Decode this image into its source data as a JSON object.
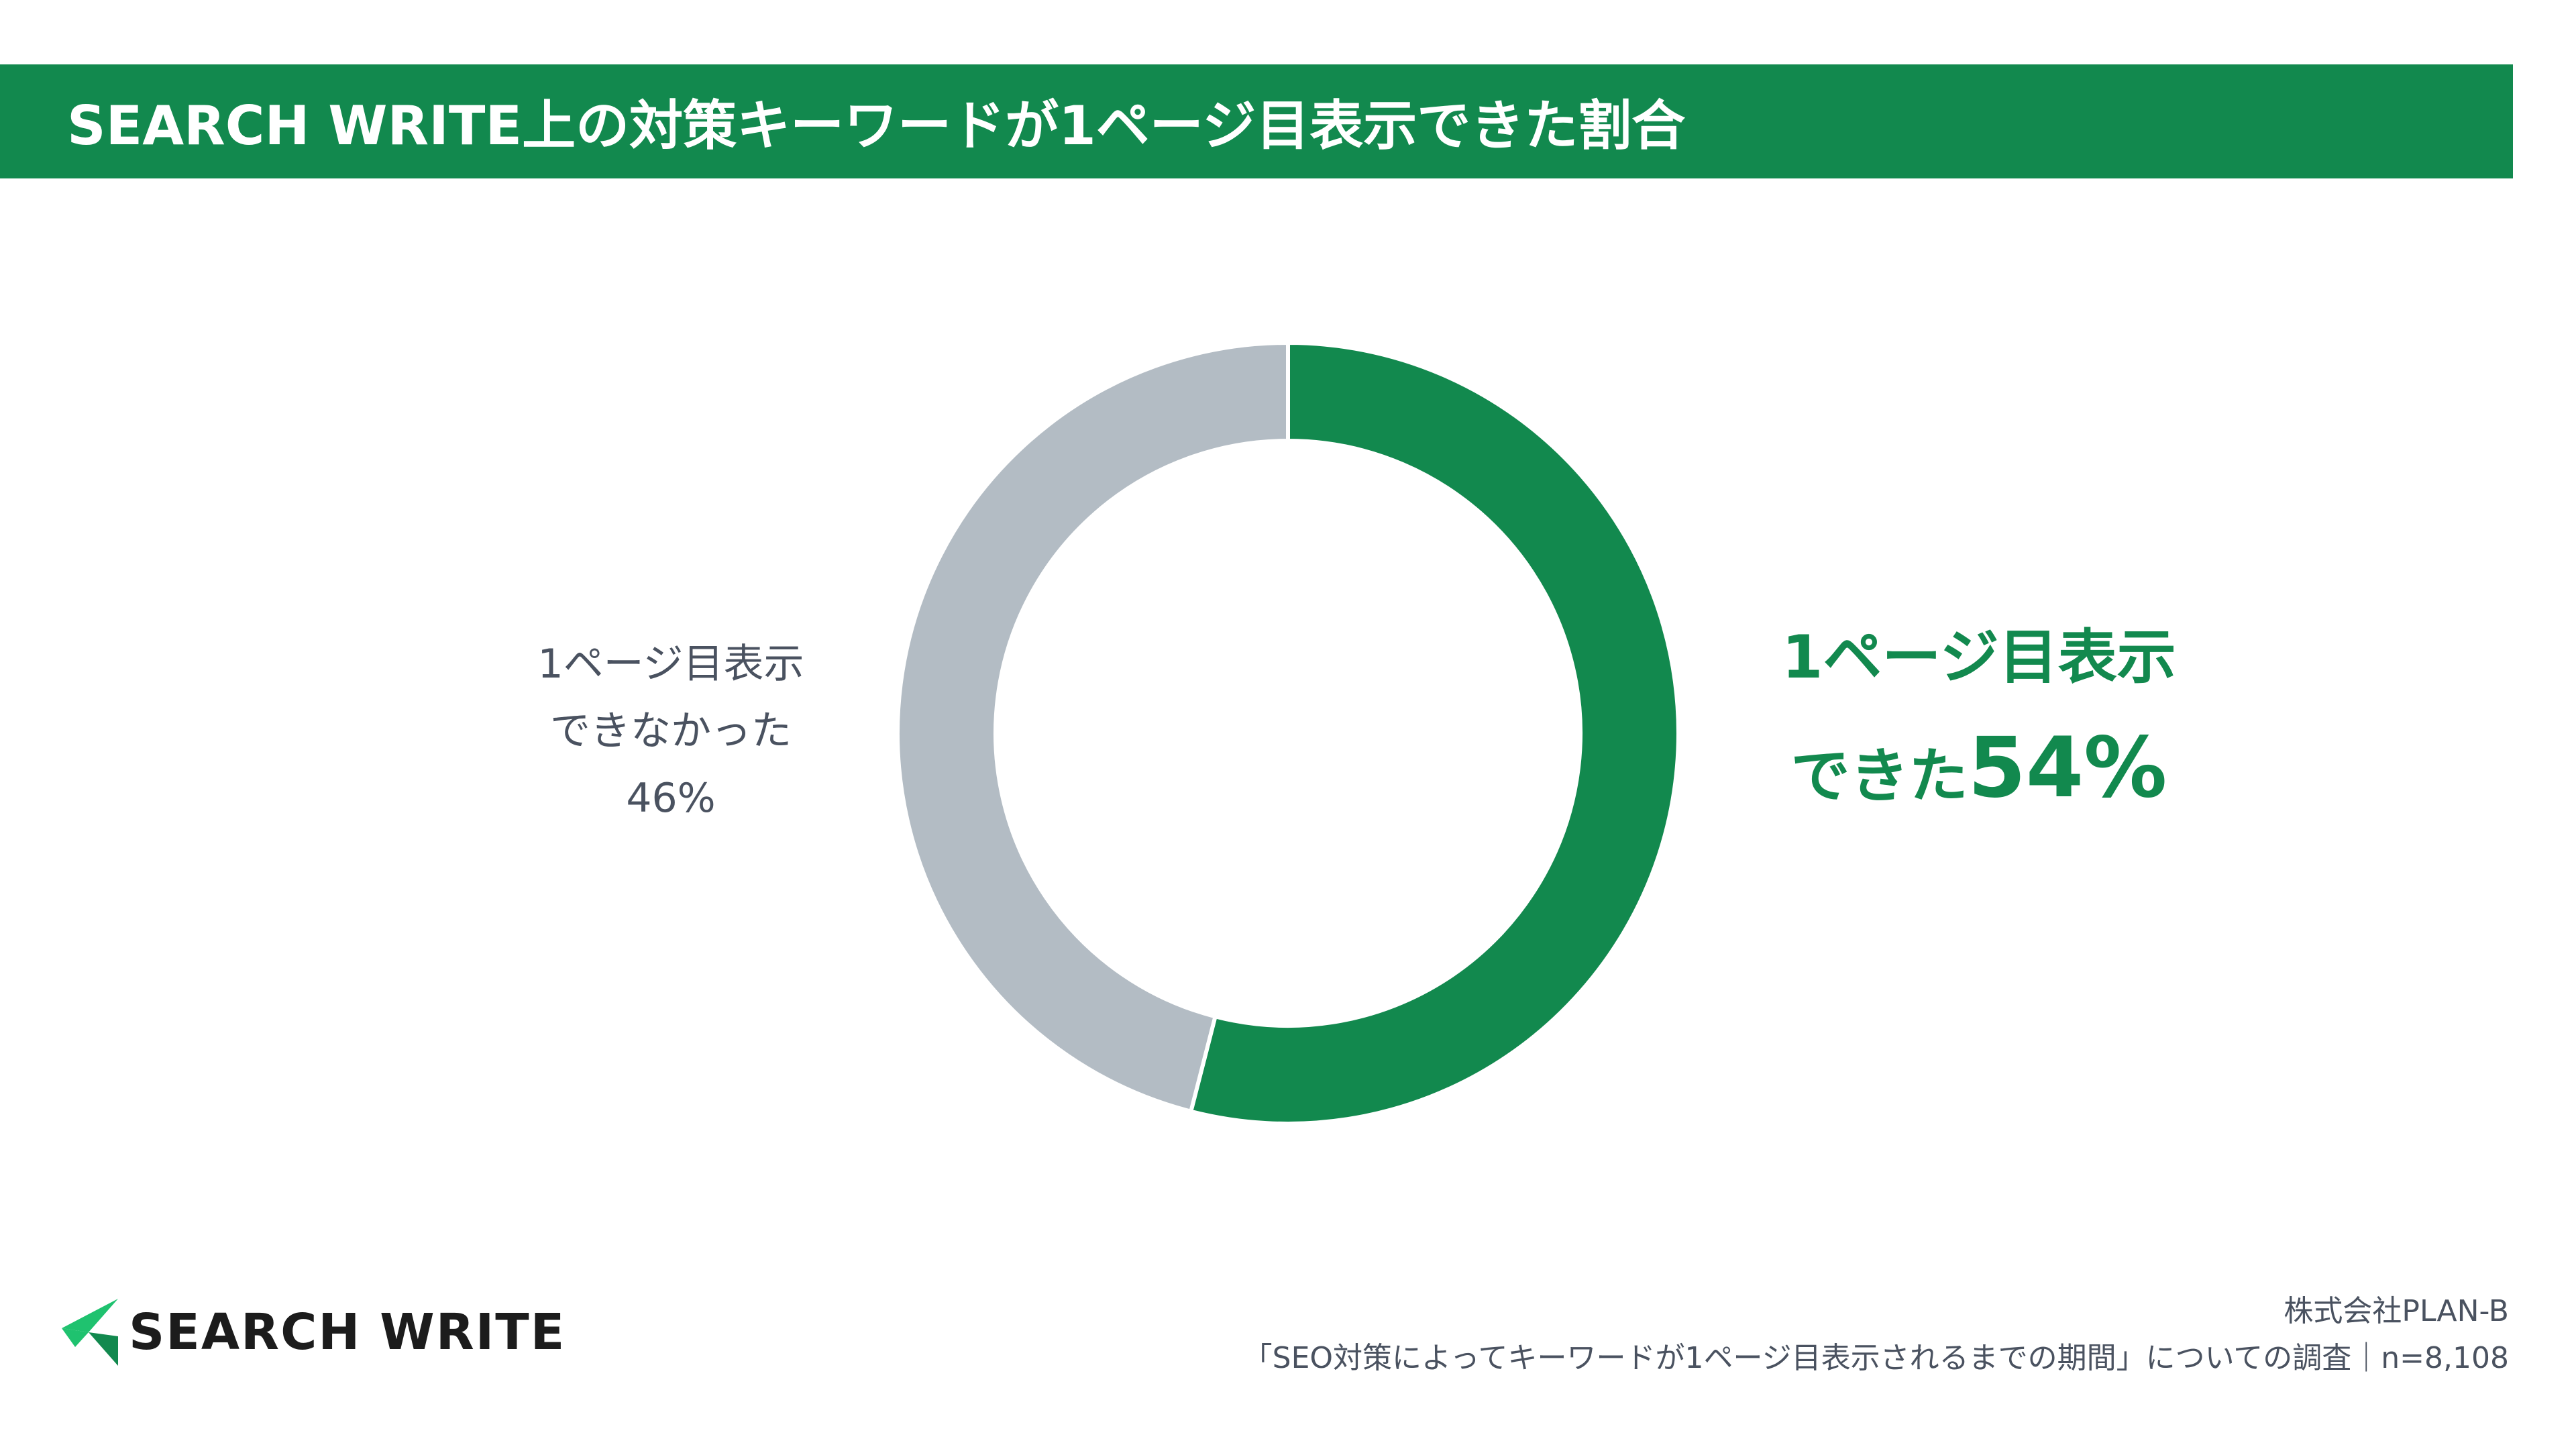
{
  "header": {
    "title": "SEARCH WRITE上の対策キーワードが1ページ目表示できた割合"
  },
  "chart_data": {
    "type": "pie",
    "style": "donut",
    "categories": [
      "1ページ目表示できた",
      "1ページ目表示できなかった"
    ],
    "values": [
      54,
      46
    ],
    "unit": "%",
    "colors": [
      "#12894e",
      "#b3bcc4"
    ],
    "labels": {
      "left": {
        "line1": "1ページ目表示",
        "line2": "できなかった",
        "line3": "46%"
      },
      "right": {
        "line1": "1ページ目表示",
        "line2_text": "できた",
        "line2_pct": "54%"
      }
    }
  },
  "logo": {
    "text": "SEARCH WRITE",
    "accent_color": "#1fc26f",
    "dark_color": "#12894e"
  },
  "source": {
    "company": "株式会社PLAN-B",
    "survey": "「SEO対策によってキーワードが1ページ目表示されるまでの期間」についての調査｜n=8,108"
  }
}
